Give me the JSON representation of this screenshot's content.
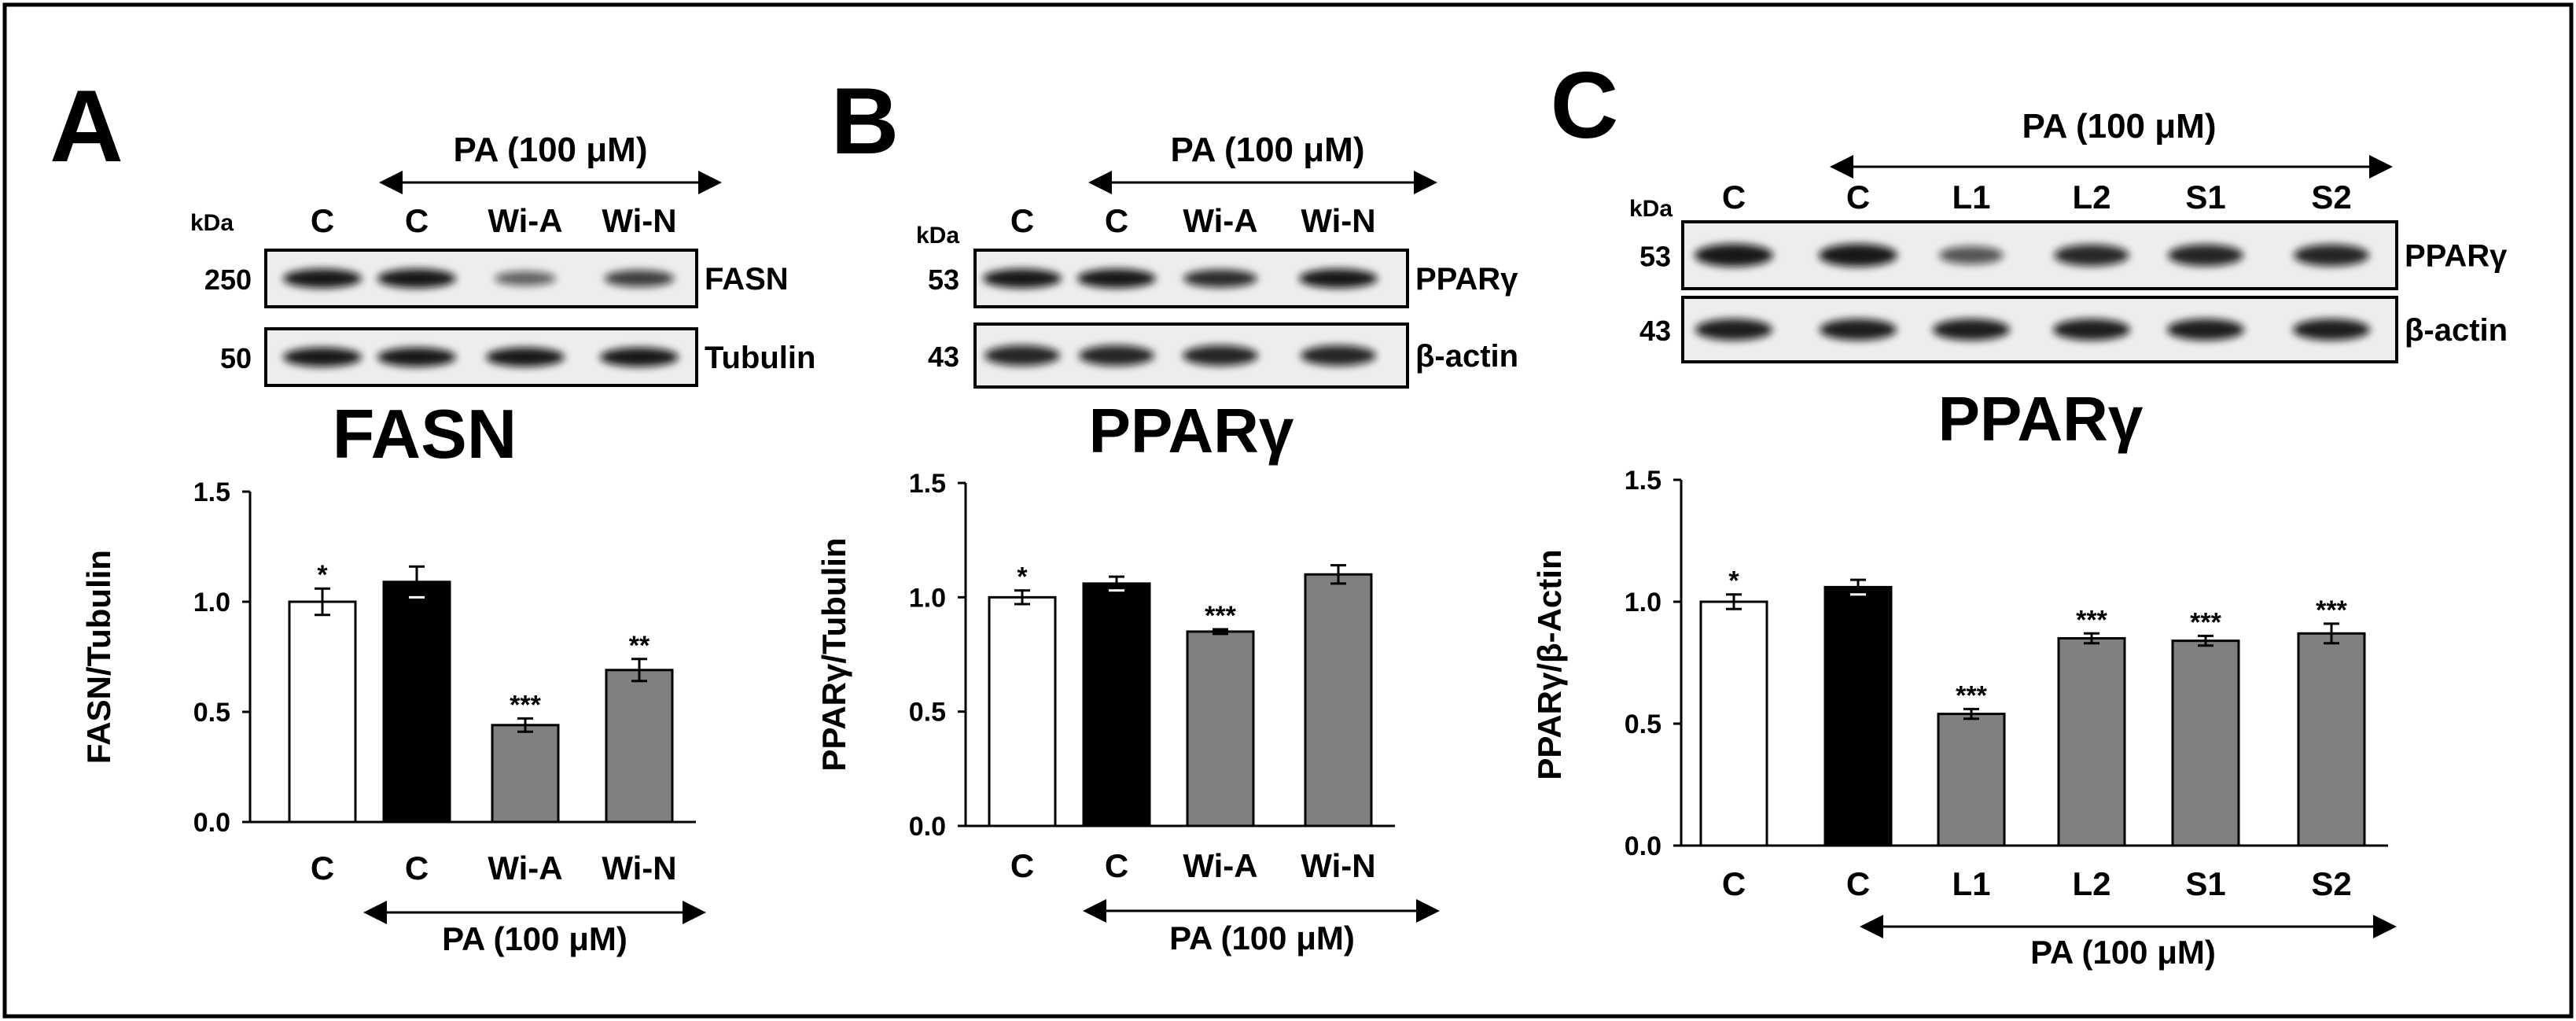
{
  "panels": [
    {
      "letter": "A",
      "treatment": "PA (100 μM)",
      "kda_label": "kDa",
      "lanes": [
        "C",
        "C",
        "Wi-A",
        "Wi-N"
      ],
      "blots": [
        {
          "kda": "250",
          "protein": "FASN",
          "intensity": [
            1.0,
            1.0,
            0.45,
            0.72
          ]
        },
        {
          "kda": "50",
          "protein": "Tubulin",
          "intensity": [
            1.0,
            1.0,
            1.0,
            1.0
          ]
        }
      ],
      "chart_title": "FASN"
    },
    {
      "letter": "B",
      "treatment": "PA (100 μM)",
      "kda_label": "kDa",
      "lanes": [
        "C",
        "C",
        "Wi-A",
        "Wi-N"
      ],
      "blots": [
        {
          "kda": "53",
          "protein": "PPARγ",
          "intensity": [
            1.0,
            1.0,
            0.85,
            1.0
          ]
        },
        {
          "kda": "43",
          "protein": "β-actin",
          "intensity": [
            0.9,
            0.9,
            0.9,
            0.9
          ]
        }
      ],
      "chart_title": "PPARγ"
    },
    {
      "letter": "C",
      "treatment": "PA (100 μM)",
      "kda_label": "kDa",
      "lanes": [
        "C",
        "C",
        "L1",
        "L2",
        "S1",
        "S2"
      ],
      "blots": [
        {
          "kda": "53",
          "protein": "PPARγ",
          "intensity": [
            1.0,
            1.0,
            0.55,
            0.88,
            0.9,
            0.9
          ]
        },
        {
          "kda": "43",
          "protein": "β-actin",
          "intensity": [
            0.95,
            0.95,
            0.95,
            0.95,
            0.95,
            0.95
          ]
        }
      ],
      "chart_title": "PPARγ"
    }
  ],
  "colors": {
    "control_bar": "#ffffff",
    "pa_bar": "#000000",
    "treated_bar": "#808080",
    "frame": "#000000"
  },
  "chart_data": [
    {
      "type": "bar",
      "categories": [
        "C",
        "C",
        "Wi-A",
        "Wi-N"
      ],
      "values": [
        1.0,
        1.09,
        0.44,
        0.69
      ],
      "errors": [
        0.06,
        0.07,
        0.03,
        0.05
      ],
      "significance": [
        "*",
        "",
        "***",
        "**"
      ],
      "bar_colors": [
        "#ffffff",
        "#000000",
        "#808080",
        "#808080"
      ],
      "ylabel": "FASN/Tubulin",
      "ylim": [
        0,
        1.5
      ],
      "yticks": [
        "0.0",
        "0.5",
        "1.0",
        "1.5"
      ],
      "x_annotation": "PA (100 μM)"
    },
    {
      "type": "bar",
      "categories": [
        "C",
        "C",
        "Wi-A",
        "Wi-N"
      ],
      "values": [
        1.0,
        1.06,
        0.85,
        1.1
      ],
      "errors": [
        0.03,
        0.03,
        0.01,
        0.04
      ],
      "significance": [
        "*",
        "",
        "***",
        ""
      ],
      "bar_colors": [
        "#ffffff",
        "#000000",
        "#808080",
        "#808080"
      ],
      "ylabel": "PPARγ/Tubulin",
      "ylim": [
        0,
        1.5
      ],
      "yticks": [
        "0.0",
        "0.5",
        "1.0",
        "1.5"
      ],
      "x_annotation": "PA (100 μM)"
    },
    {
      "type": "bar",
      "categories": [
        "C",
        "C",
        "L1",
        "L2",
        "S1",
        "S2"
      ],
      "values": [
        1.0,
        1.06,
        0.54,
        0.85,
        0.84,
        0.87
      ],
      "errors": [
        0.03,
        0.03,
        0.02,
        0.02,
        0.02,
        0.04
      ],
      "significance": [
        "*",
        "",
        "***",
        "***",
        "***",
        "***"
      ],
      "bar_colors": [
        "#ffffff",
        "#000000",
        "#808080",
        "#808080",
        "#808080",
        "#808080"
      ],
      "ylabel": "PPARγ/β-Actin",
      "ylim": [
        0,
        1.5
      ],
      "yticks": [
        "0.0",
        "0.5",
        "1.0",
        "1.5"
      ],
      "x_annotation": "PA (100 μM)"
    }
  ]
}
